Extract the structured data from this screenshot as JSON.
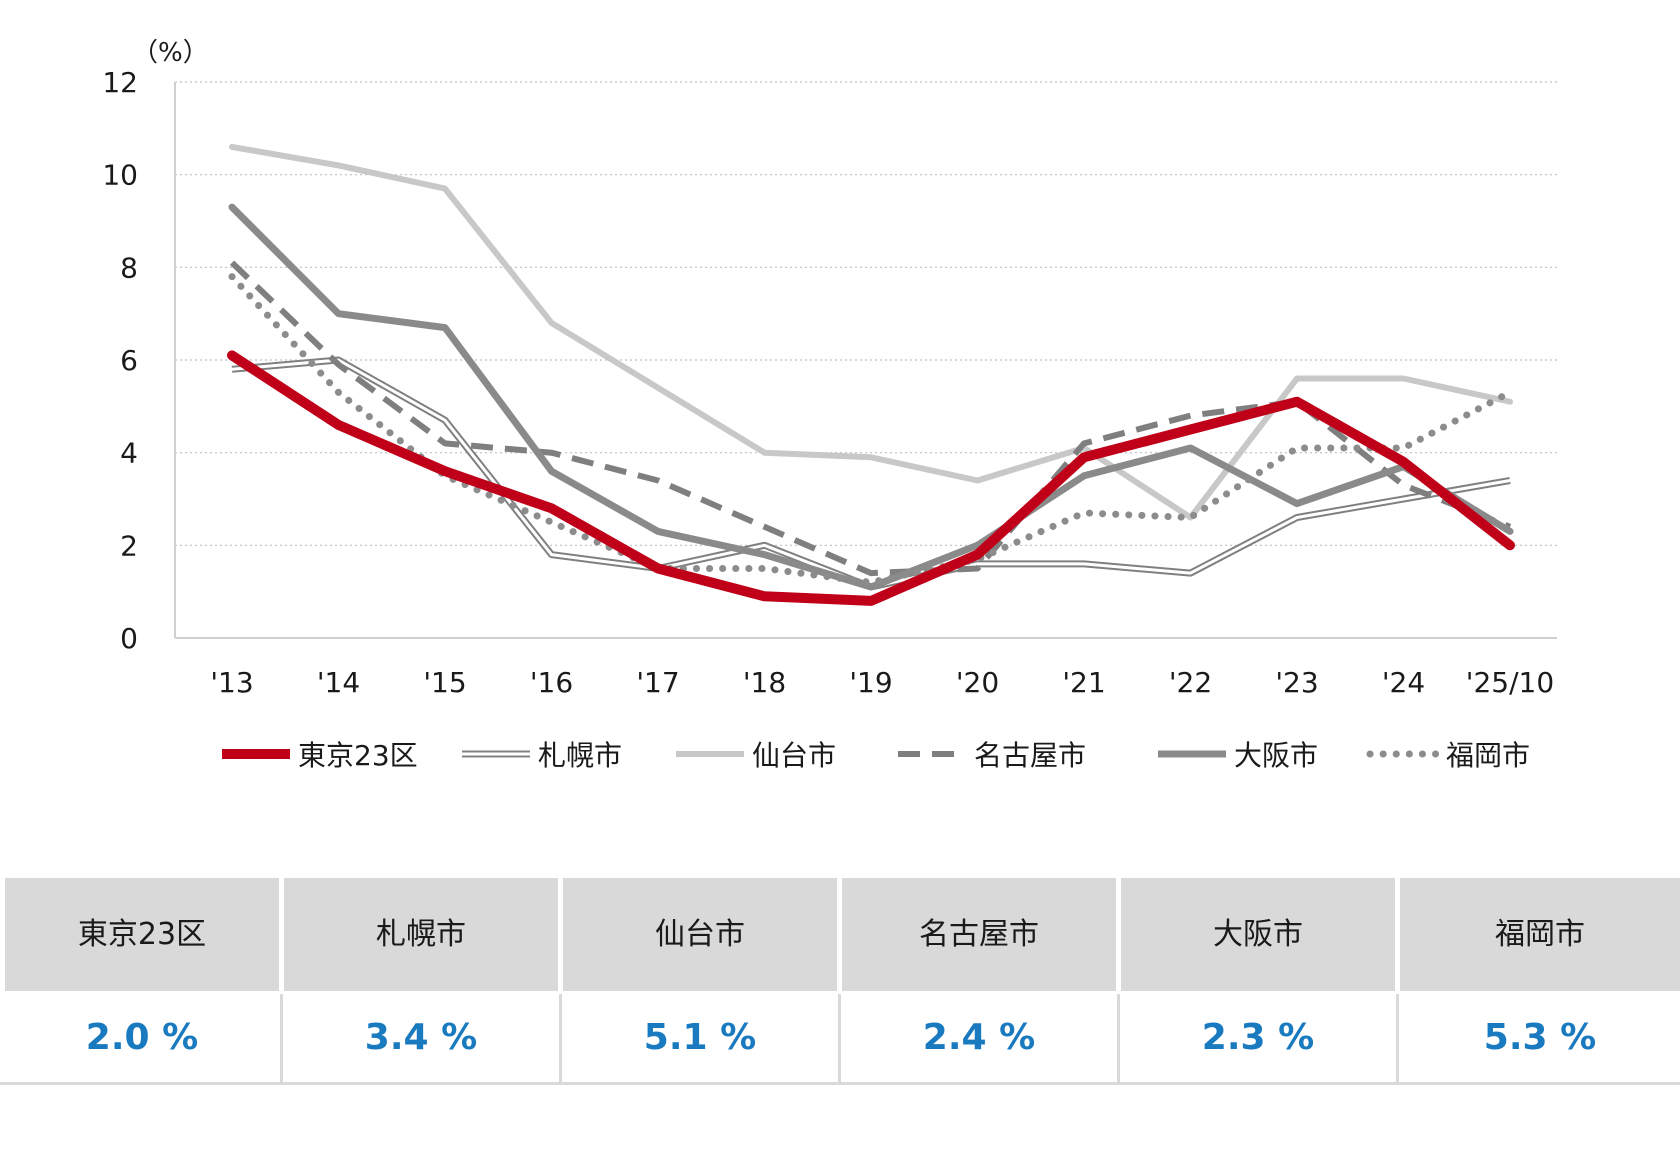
{
  "chart_data": {
    "type": "line",
    "unit_label": "（%）",
    "ylim": [
      0,
      12
    ],
    "yticks": [
      "0",
      "2",
      "4",
      "6",
      "8",
      "10",
      "12"
    ],
    "grid": true,
    "legend_position": "bottom",
    "categories": [
      "'13",
      "'14",
      "'15",
      "'16",
      "'17",
      "'18",
      "'19",
      "'20",
      "'21",
      "'22",
      "'23",
      "'24",
      "'25/10"
    ],
    "series": [
      {
        "name": "札幌市",
        "color": "#808080",
        "style": "double",
        "values": [
          5.8,
          6.0,
          4.7,
          1.8,
          1.5,
          2.0,
          1.1,
          1.6,
          1.6,
          1.4,
          2.6,
          3.0,
          3.4
        ]
      },
      {
        "name": "仙台市",
        "color": "#c8c8c8",
        "style": "solid",
        "values": [
          10.6,
          10.2,
          9.7,
          6.8,
          5.4,
          4.0,
          3.9,
          3.4,
          4.1,
          2.6,
          5.6,
          5.6,
          5.1
        ]
      },
      {
        "name": "名古屋市",
        "color": "#7f7f7f",
        "style": "dashed",
        "values": [
          8.1,
          5.9,
          4.2,
          4.0,
          3.4,
          2.4,
          1.4,
          1.5,
          4.2,
          4.8,
          5.1,
          3.3,
          2.4
        ]
      },
      {
        "name": "大阪市",
        "color": "#8a8a8a",
        "style": "solid-thick",
        "values": [
          9.3,
          7.0,
          6.7,
          3.6,
          2.3,
          1.8,
          1.1,
          2.0,
          3.5,
          4.1,
          2.9,
          3.7,
          2.3
        ]
      },
      {
        "name": "福岡市",
        "color": "#8c8c8c",
        "style": "dotted",
        "values": [
          7.8,
          5.3,
          3.5,
          2.5,
          1.5,
          1.5,
          1.2,
          1.7,
          2.7,
          2.6,
          4.1,
          4.1,
          5.3
        ]
      },
      {
        "name": "東京23区",
        "color": "#c00018",
        "style": "bold",
        "values": [
          6.1,
          4.6,
          3.6,
          2.8,
          1.5,
          0.9,
          0.8,
          1.8,
          3.9,
          4.5,
          5.1,
          3.8,
          2.0
        ]
      }
    ],
    "legend_order": [
      "東京23区",
      "札幌市",
      "仙台市",
      "名古屋市",
      "大阪市",
      "福岡市"
    ]
  },
  "summary": {
    "headers": [
      "東京23区",
      "札幌市",
      "仙台市",
      "名古屋市",
      "大阪市",
      "福岡市"
    ],
    "values": [
      "2.0 %",
      "3.4 %",
      "5.1 %",
      "2.4 %",
      "2.3 %",
      "5.3 %"
    ]
  }
}
